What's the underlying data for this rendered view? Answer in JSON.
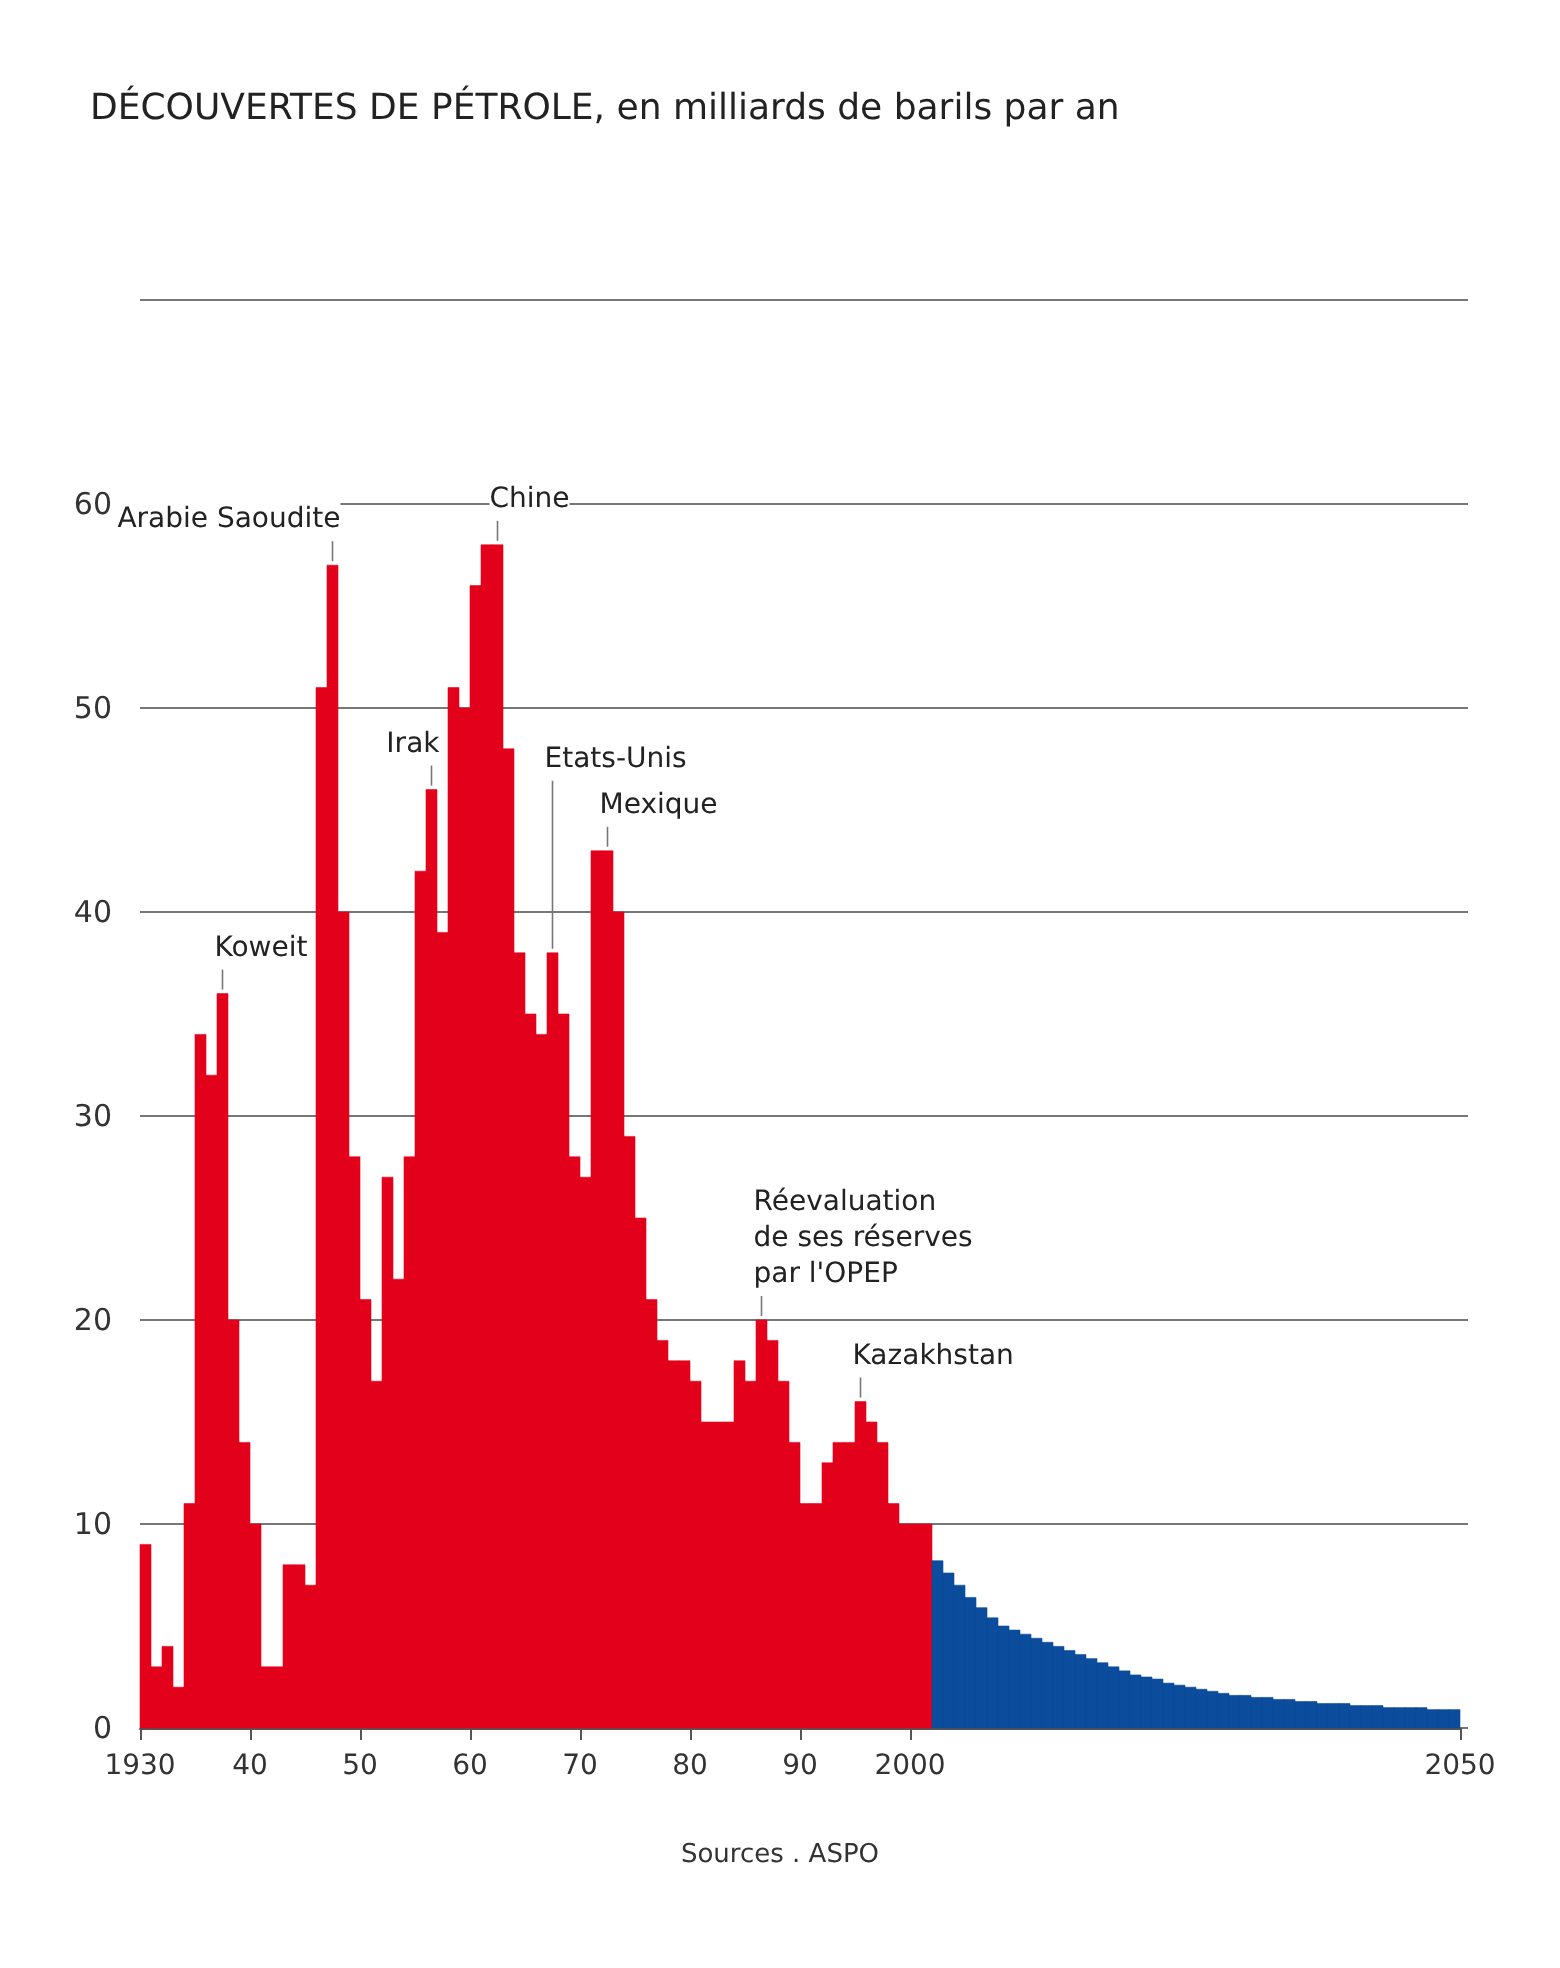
{
  "chart_data": {
    "type": "histogram",
    "title": "DÉCOUVERTES DE PÉTROLE, en milliards de barils par an",
    "bins": [
      1930,
      1931,
      1932,
      1933,
      1934,
      1935,
      1936,
      1937,
      1938,
      1939,
      1940,
      1941,
      1942,
      1943,
      1944,
      1945,
      1946,
      1947,
      1948,
      1949,
      1950,
      1951,
      1952,
      1953,
      1954,
      1955,
      1956,
      1957,
      1958,
      1959,
      1960,
      1961,
      1962,
      1963,
      1964,
      1965,
      1966,
      1967,
      1968,
      1969,
      1970,
      1971,
      1972,
      1973,
      1974,
      1975,
      1976,
      1977,
      1978,
      1979,
      1980,
      1981,
      1982,
      1983,
      1984,
      1985,
      1986,
      1987,
      1988,
      1989,
      1990,
      1991,
      1992,
      1993,
      1994,
      1995,
      1996,
      1997,
      1998,
      1999,
      2000,
      2001,
      2002,
      2003,
      2004,
      2005,
      2006,
      2007,
      2008,
      2009,
      2010,
      2011,
      2012,
      2013,
      2014,
      2015,
      2016,
      2017,
      2018,
      2019,
      2020,
      2021,
      2022,
      2023,
      2024,
      2025,
      2026,
      2027,
      2028,
      2029,
      2030,
      2031,
      2032,
      2033,
      2034,
      2035,
      2036,
      2037,
      2038,
      2039,
      2040,
      2041,
      2042,
      2043,
      2044,
      2045,
      2046,
      2047,
      2048,
      2049,
      2050
    ],
    "series": [
      {
        "color": "#e3001b",
        "values": [
          9,
          3,
          4,
          2,
          11,
          34,
          32,
          36,
          20,
          14,
          10,
          3,
          3,
          8,
          8,
          7,
          51,
          57,
          40,
          28,
          21,
          17,
          27,
          22,
          28,
          42,
          46,
          39,
          51,
          50,
          56,
          58,
          58,
          48,
          38,
          35,
          34,
          38,
          35,
          28,
          27,
          43,
          43,
          40,
          29,
          25,
          21,
          19,
          18,
          18,
          17,
          15,
          15,
          15,
          18,
          17,
          20,
          19,
          17,
          14,
          11,
          11,
          13,
          14,
          14,
          16,
          15,
          14,
          11,
          10,
          10,
          10,
          null,
          null,
          null,
          null,
          null,
          null,
          null,
          null,
          null,
          null,
          null,
          null,
          null,
          null,
          null,
          null,
          null,
          null,
          null,
          null,
          null,
          null,
          null,
          null,
          null,
          null,
          null,
          null,
          null,
          null,
          null,
          null,
          null,
          null,
          null,
          null,
          null,
          null,
          null,
          null,
          null,
          null,
          null,
          null,
          null,
          null,
          null,
          null
        ]
      },
      {
        "color": "#0b4c9c",
        "values": [
          null,
          null,
          null,
          null,
          null,
          null,
          null,
          null,
          null,
          null,
          null,
          null,
          null,
          null,
          null,
          null,
          null,
          null,
          null,
          null,
          null,
          null,
          null,
          null,
          null,
          null,
          null,
          null,
          null,
          null,
          null,
          null,
          null,
          null,
          null,
          null,
          null,
          null,
          null,
          null,
          null,
          null,
          null,
          null,
          null,
          null,
          null,
          null,
          null,
          null,
          null,
          null,
          null,
          null,
          null,
          null,
          null,
          null,
          null,
          null,
          null,
          null,
          null,
          null,
          null,
          null,
          null,
          null,
          null,
          null,
          null,
          null,
          8.2,
          7.6,
          7.0,
          6.4,
          5.9,
          5.4,
          5.0,
          4.8,
          4.6,
          4.4,
          4.2,
          4.0,
          3.8,
          3.6,
          3.4,
          3.2,
          3.0,
          2.8,
          2.6,
          2.5,
          2.4,
          2.2,
          2.1,
          2.0,
          1.9,
          1.8,
          1.7,
          1.6,
          1.6,
          1.5,
          1.5,
          1.4,
          1.4,
          1.3,
          1.3,
          1.2,
          1.2,
          1.2,
          1.1,
          1.1,
          1.1,
          1.0,
          1.0,
          1.0,
          1.0,
          0.9,
          0.9,
          0.9
        ]
      }
    ],
    "xlim": [
      1930,
      2050
    ],
    "xticks": [
      1930,
      {
        "value": 1940,
        "label": "40"
      },
      {
        "value": 1950,
        "label": "50"
      },
      {
        "value": 1960,
        "label": "60"
      },
      {
        "value": 1970,
        "label": "70"
      },
      {
        "value": 1980,
        "label": "80"
      },
      {
        "value": 1990,
        "label": "90"
      },
      2000,
      2050
    ],
    "ylim": [
      0,
      70
    ],
    "yticks": [
      0,
      10,
      20,
      30,
      40,
      50,
      60,
      {
        "value": 70,
        "label": null
      }
    ],
    "grid": "y",
    "annotations": [
      {
        "text": "Koweit",
        "x": 1937.5,
        "y": 36
      },
      {
        "text": "Arabie Saoudite",
        "x": 1947.5,
        "y": 57
      },
      {
        "text": "Irak",
        "x": 1956.5,
        "y": 46
      },
      {
        "text": "Chine",
        "x": 1962.5,
        "y": 58
      },
      {
        "text": "Etats-Unis",
        "x": 1967.5,
        "y": 38
      },
      {
        "text": "Mexique",
        "x": 1972.5,
        "y": 43
      },
      {
        "text": "Réevaluation\nde ses réserves\npar l'OPEP",
        "x": 1986.5,
        "y": 20
      },
      {
        "text": "Kazakhstan",
        "x": 1995.5,
        "y": 16
      },
      "Sources . ASPO"
    ]
  }
}
